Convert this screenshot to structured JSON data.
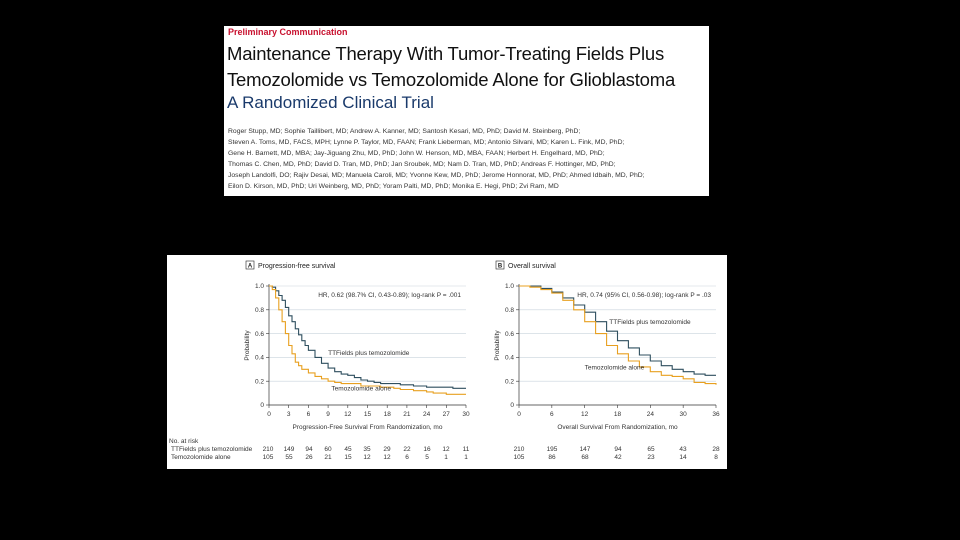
{
  "header": {
    "kicker": "Preliminary Communication",
    "title_line1": "Maintenance Therapy With Tumor-Treating Fields Plus",
    "title_line2": "Temozolomide vs Temozolomide Alone for Glioblastoma",
    "subtitle": "A Randomized Clinical Trial",
    "authors": [
      "Roger Stupp, MD; Sophie Taillibert, MD; Andrew A. Kanner, MD; Santosh Kesari, MD, PhD; David M. Steinberg, PhD;",
      "Steven A. Toms, MD, FACS, MPH; Lynne P. Taylor, MD, FAAN; Frank Lieberman, MD; Antonio Silvani, MD; Karen L. Fink, MD, PhD;",
      "Gene H. Barnett, MD, MBA; Jay-Jiguang Zhu, MD, PhD; John W. Henson, MD, MBA, FAAN; Herbert H. Engelhard, MD, PhD;",
      "Thomas C. Chen, MD, PhD; David D. Tran, MD, PhD; Jan Sroubek, MD; Nam D. Tran, MD, PhD; Andreas F. Hottinger, MD, PhD;",
      "Joseph Landolfi, DO; Rajiv Desai, MD; Manuela Caroli, MD; Yvonne Kew, MD, PhD; Jerome Honnorat, MD, PhD; Ahmed Idbaih, MD, PhD;",
      "Eilon D. Kirson, MD, PhD; Uri Weinberg, MD, PhD; Yoram Palti, MD, PhD; Monika E. Hegi, PhD; Zvi Ram, MD"
    ]
  },
  "colors": {
    "ttfields": "#2f4f5f",
    "tmz": "#e8a020"
  },
  "risk_header": "No. at risk",
  "chart_data": [
    {
      "type": "line",
      "panel": "A",
      "title": "Progression-free survival",
      "xlabel": "Progression-Free Survival From Randomization, mo",
      "ylabel": "Probability",
      "xlim": [
        0,
        30
      ],
      "ylim": [
        0,
        1.0
      ],
      "xticks": [
        0,
        3,
        6,
        9,
        12,
        15,
        18,
        21,
        24,
        27,
        30
      ],
      "yticks": [
        "0",
        "0.2",
        "0.4",
        "0.6",
        "0.8",
        "1.0"
      ],
      "annotation": "HR, 0.62 (98.7% CI, 0.43-0.89); log-rank P = .001",
      "series": [
        {
          "name": "TTFields plus temozolomide",
          "color": "#2f4f5f",
          "points": [
            [
              0,
              1.0
            ],
            [
              0.5,
              0.99
            ],
            [
              1,
              0.96
            ],
            [
              1.5,
              0.92
            ],
            [
              2,
              0.88
            ],
            [
              2.5,
              0.82
            ],
            [
              3,
              0.75
            ],
            [
              3.5,
              0.7
            ],
            [
              4,
              0.64
            ],
            [
              4.5,
              0.59
            ],
            [
              5,
              0.54
            ],
            [
              5.5,
              0.5
            ],
            [
              6,
              0.46
            ],
            [
              7,
              0.4
            ],
            [
              8,
              0.35
            ],
            [
              9,
              0.31
            ],
            [
              10,
              0.28
            ],
            [
              11,
              0.26
            ],
            [
              12,
              0.25
            ],
            [
              13,
              0.23
            ],
            [
              14,
              0.21
            ],
            [
              15,
              0.2
            ],
            [
              16,
              0.19
            ],
            [
              17,
              0.18
            ],
            [
              18,
              0.18
            ],
            [
              20,
              0.17
            ],
            [
              22,
              0.16
            ],
            [
              24,
              0.15
            ],
            [
              26,
              0.15
            ],
            [
              28,
              0.14
            ],
            [
              30,
              0.14
            ]
          ],
          "label_x": 9,
          "label_y": 0.42
        },
        {
          "name": "Temozolomide alone",
          "color": "#e8a020",
          "points": [
            [
              0,
              1.0
            ],
            [
              0.5,
              0.97
            ],
            [
              1,
              0.9
            ],
            [
              1.5,
              0.8
            ],
            [
              2,
              0.7
            ],
            [
              2.5,
              0.6
            ],
            [
              3,
              0.5
            ],
            [
              3.5,
              0.43
            ],
            [
              4,
              0.36
            ],
            [
              4.5,
              0.33
            ],
            [
              5,
              0.3
            ],
            [
              6,
              0.27
            ],
            [
              7,
              0.24
            ],
            [
              8,
              0.22
            ],
            [
              9,
              0.2
            ],
            [
              10,
              0.19
            ],
            [
              11,
              0.18
            ],
            [
              12,
              0.18
            ],
            [
              14,
              0.16
            ],
            [
              15,
              0.16
            ],
            [
              17,
              0.15
            ],
            [
              18,
              0.15
            ],
            [
              19,
              0.14
            ],
            [
              20,
              0.13
            ],
            [
              21,
              0.13
            ],
            [
              22,
              0.12
            ],
            [
              24,
              0.11
            ],
            [
              25,
              0.1
            ],
            [
              27,
              0.09
            ],
            [
              30,
              0.09
            ]
          ],
          "label_x": 9.5,
          "label_y": 0.12
        }
      ],
      "risk_rows": [
        {
          "name": "TTFields plus temozolomide",
          "values": [
            "210",
            "149",
            "94",
            "60",
            "45",
            "35",
            "29",
            "22",
            "16",
            "12",
            "11"
          ]
        },
        {
          "name": "Temozolomide alone",
          "values": [
            "105",
            "55",
            "26",
            "21",
            "15",
            "12",
            "12",
            "6",
            "5",
            "1",
            "1"
          ]
        }
      ]
    },
    {
      "type": "line",
      "panel": "B",
      "title": "Overall survival",
      "xlabel": "Overall Survival From Randomization, mo",
      "ylabel": "Probability",
      "xlim": [
        0,
        36
      ],
      "ylim": [
        0,
        1.0
      ],
      "xticks": [
        0,
        6,
        12,
        18,
        24,
        30,
        36
      ],
      "yticks": [
        "0",
        "0.2",
        "0.4",
        "0.6",
        "0.8",
        "1.0"
      ],
      "annotation": "HR, 0.74 (95% CI, 0.56-0.98); log-rank P = .03",
      "series": [
        {
          "name": "TTFields plus temozolomide",
          "color": "#2f4f5f",
          "points": [
            [
              0,
              1.0
            ],
            [
              2,
              1.0
            ],
            [
              4,
              0.98
            ],
            [
              6,
              0.95
            ],
            [
              8,
              0.9
            ],
            [
              10,
              0.84
            ],
            [
              12,
              0.78
            ],
            [
              14,
              0.7
            ],
            [
              16,
              0.62
            ],
            [
              18,
              0.54
            ],
            [
              20,
              0.48
            ],
            [
              22,
              0.42
            ],
            [
              24,
              0.37
            ],
            [
              26,
              0.33
            ],
            [
              28,
              0.3
            ],
            [
              30,
              0.28
            ],
            [
              32,
              0.26
            ],
            [
              34,
              0.25
            ],
            [
              36,
              0.25
            ]
          ],
          "label_x": 16.5,
          "label_y": 0.68
        },
        {
          "name": "Temozolomide alone",
          "color": "#e8a020",
          "points": [
            [
              0,
              1.0
            ],
            [
              2,
              0.99
            ],
            [
              4,
              0.97
            ],
            [
              6,
              0.94
            ],
            [
              8,
              0.88
            ],
            [
              10,
              0.8
            ],
            [
              12,
              0.7
            ],
            [
              14,
              0.6
            ],
            [
              16,
              0.5
            ],
            [
              18,
              0.43
            ],
            [
              20,
              0.37
            ],
            [
              22,
              0.32
            ],
            [
              24,
              0.28
            ],
            [
              26,
              0.25
            ],
            [
              28,
              0.24
            ],
            [
              30,
              0.22
            ],
            [
              32,
              0.19
            ],
            [
              34,
              0.18
            ],
            [
              36,
              0.17
            ]
          ],
          "label_x": 12,
          "label_y": 0.3
        }
      ],
      "risk_rows": [
        {
          "name": "TTFields plus temozolomide",
          "values": [
            "210",
            "195",
            "147",
            "94",
            "65",
            "43",
            "28"
          ]
        },
        {
          "name": "Temozolomide alone",
          "values": [
            "105",
            "86",
            "68",
            "42",
            "23",
            "14",
            "8"
          ]
        }
      ]
    }
  ]
}
